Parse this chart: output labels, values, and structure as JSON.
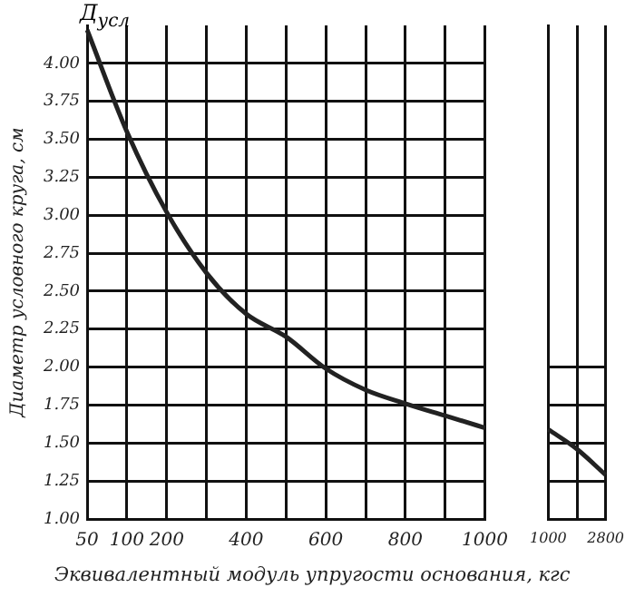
{
  "chart_data": [
    {
      "type": "line",
      "annotations": [
        "Д$_{усл}$"
      ],
      "xlabel": "Эквивалентный модуль упругости основания, кгс",
      "ylabel": "Диаметр условного круга, см",
      "categories": [
        "50",
        "100",
        "200",
        null,
        "400",
        null,
        "600",
        null,
        "800",
        null,
        "1000"
      ],
      "values": [
        4.22,
        3.55,
        3.02,
        2.62,
        2.35,
        2.2,
        1.99,
        1.85,
        1.76,
        1.68,
        1.6
      ],
      "color": "#222222",
      "ylim": [
        1,
        4.25
      ],
      "yticks": [
        {
          "value": 1,
          "label": "1.00"
        },
        {
          "value": 1.25,
          "label": "1.25"
        },
        {
          "value": 1.5,
          "label": "1.50"
        },
        {
          "value": 1.75,
          "label": "1.75"
        },
        {
          "value": 2,
          "label": "2.00"
        },
        {
          "value": 2.25,
          "label": "2.25"
        },
        {
          "value": 2.5,
          "label": "2.50"
        },
        {
          "value": 2.75,
          "label": "2.75"
        },
        {
          "value": 3,
          "label": "3.00"
        },
        {
          "value": 3.25,
          "label": "3.25"
        },
        {
          "value": 3.5,
          "label": "3.50"
        },
        {
          "value": 3.75,
          "label": "3.75"
        },
        {
          "value": 4,
          "label": "4.00"
        }
      ],
      "grid": true,
      "marker": "none",
      "line_style": "solid"
    },
    {
      "type": "line",
      "categories": [
        "1000",
        null,
        "2800"
      ],
      "values": [
        1.59,
        1.46,
        1.29
      ],
      "color": "#222222",
      "ylim": [
        1,
        4.25
      ],
      "yticks": [
        1,
        1.25,
        1.5,
        1.75,
        2
      ],
      "tick_labels": "x",
      "grid": true,
      "marker": "none",
      "line_style": "solid"
    }
  ]
}
